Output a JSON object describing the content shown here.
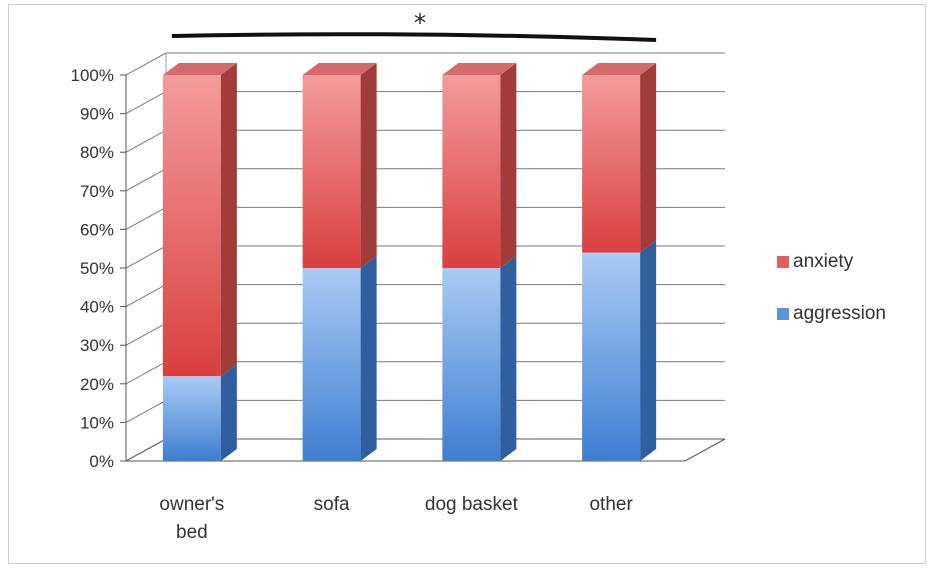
{
  "chart_data": {
    "type": "bar",
    "stacked": true,
    "percent_stacked": true,
    "three_d": true,
    "categories": [
      "owner's bed",
      "sofa",
      "dog basket",
      "other"
    ],
    "series": [
      {
        "name": "aggression",
        "values": [
          22,
          50,
          50,
          54
        ],
        "color": "#5b93d6"
      },
      {
        "name": "anxiety",
        "values": [
          78,
          50,
          50,
          46
        ],
        "color": "#e25f5f"
      }
    ],
    "ylim": [
      0,
      100
    ],
    "yticks": [
      "0%",
      "10%",
      "20%",
      "30%",
      "40%",
      "50%",
      "60%",
      "70%",
      "80%",
      "90%",
      "100%"
    ],
    "grid": true,
    "legend_position": "right",
    "legend_order": [
      "anxiety",
      "aggression"
    ],
    "annotation": {
      "text": "*",
      "spans": [
        "owner's bed",
        "other"
      ]
    }
  }
}
